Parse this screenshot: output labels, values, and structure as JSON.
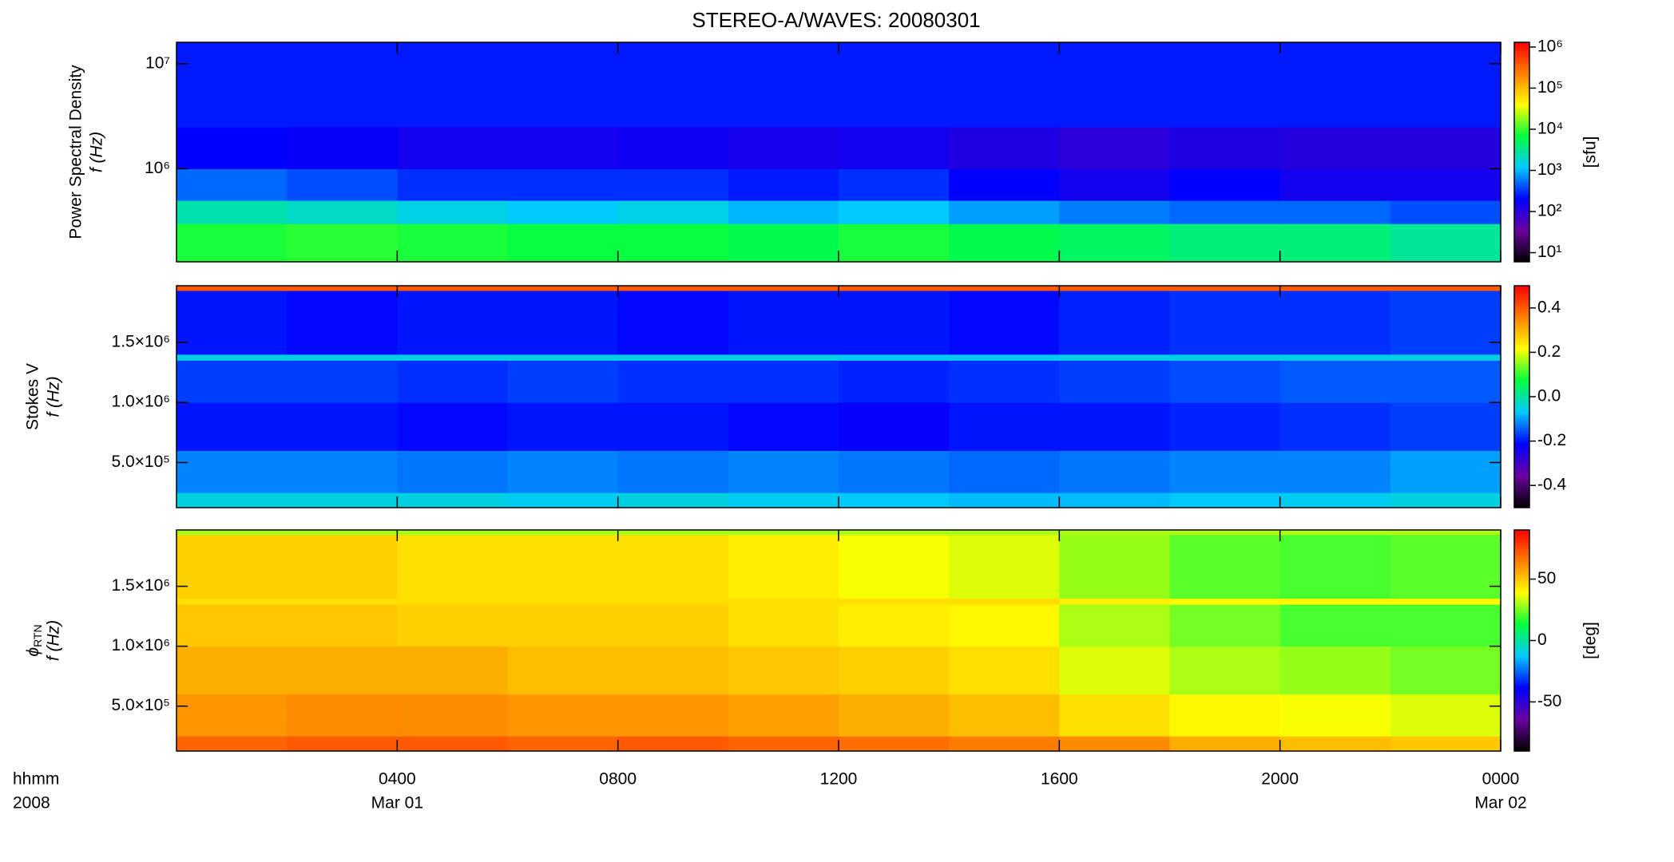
{
  "chart_data": [
    {
      "type": "heatmap",
      "title": "STEREO-A/WAVES: 20080301",
      "y_label": [
        "Power Spectral Density",
        "f (Hz)"
      ],
      "colorbar_label": "[sfu]",
      "log": true,
      "ylim": [
        130000,
        16000000
      ],
      "yticks": [
        {
          "value": 1000000,
          "label": "10⁶"
        },
        {
          "value": 10000000,
          "label": "10⁷"
        }
      ],
      "xlim": [
        0,
        24
      ],
      "xbins": [
        0,
        2,
        4,
        6,
        8,
        10,
        12,
        14,
        16,
        18,
        20,
        22,
        24
      ],
      "ybins": [
        130000,
        300000,
        500000,
        1000000,
        2500000,
        16000000
      ],
      "values": [
        [
          8000,
          9000,
          8000,
          7000,
          7000,
          6000,
          8000,
          6000,
          5000,
          4000,
          4000,
          3000
        ],
        [
          2500,
          2000,
          1500,
          1200,
          1500,
          1000,
          1200,
          800,
          600,
          500,
          500,
          400
        ],
        [
          500,
          400,
          300,
          300,
          300,
          250,
          300,
          200,
          150,
          200,
          150,
          150
        ],
        [
          200,
          180,
          150,
          150,
          160,
          140,
          150,
          120,
          100,
          120,
          110,
          110
        ],
        [
          250,
          250,
          250,
          250,
          250,
          250,
          250,
          250,
          250,
          250,
          250,
          250
        ]
      ],
      "clog": true,
      "clim": [
        6,
        1300000
      ],
      "cticks": [
        {
          "value": 10,
          "label": "10¹"
        },
        {
          "value": 100,
          "label": "10²"
        },
        {
          "value": 1000,
          "label": "10³"
        },
        {
          "value": 10000,
          "label": "10⁴"
        },
        {
          "value": 100000,
          "label": "10⁵"
        },
        {
          "value": 1000000,
          "label": "10⁶"
        }
      ],
      "colormap": [
        "#000000",
        "#6a00a0",
        "#0000ff",
        "#00c8ff",
        "#00ff40",
        "#ffff00",
        "#ff8000",
        "#ff0000"
      ]
    },
    {
      "type": "heatmap",
      "y_label": [
        "Stokes V",
        "f (Hz)"
      ],
      "ylim": [
        125000,
        1970000
      ],
      "yticks": [
        {
          "value": 500000,
          "label": "5.0×10⁵"
        },
        {
          "value": 1000000,
          "label": "1.0×10⁶"
        },
        {
          "value": 1500000,
          "label": "1.5×10⁶"
        }
      ],
      "xlim": [
        0,
        24
      ],
      "xbins": [
        0,
        2,
        4,
        6,
        8,
        10,
        12,
        14,
        16,
        18,
        20,
        22,
        24
      ],
      "ybins": [
        125000,
        250000,
        600000,
        1000000,
        1350000,
        1400000,
        1930000,
        1970000
      ],
      "values": [
        [
          -0.05,
          -0.05,
          -0.05,
          -0.06,
          -0.05,
          -0.06,
          -0.07,
          -0.08,
          -0.08,
          -0.07,
          -0.06,
          -0.05
        ],
        [
          -0.12,
          -0.12,
          -0.13,
          -0.12,
          -0.13,
          -0.12,
          -0.13,
          -0.14,
          -0.13,
          -0.12,
          -0.12,
          -0.1
        ],
        [
          -0.2,
          -0.2,
          -0.21,
          -0.2,
          -0.2,
          -0.21,
          -0.22,
          -0.2,
          -0.2,
          -0.19,
          -0.18,
          -0.17
        ],
        [
          -0.17,
          -0.17,
          -0.18,
          -0.17,
          -0.18,
          -0.18,
          -0.19,
          -0.18,
          -0.17,
          -0.16,
          -0.15,
          -0.15
        ],
        [
          -0.05,
          -0.05,
          -0.05,
          -0.05,
          -0.05,
          -0.05,
          -0.06,
          -0.06,
          -0.05,
          -0.05,
          -0.05,
          -0.05
        ],
        [
          -0.2,
          -0.21,
          -0.2,
          -0.2,
          -0.21,
          -0.2,
          -0.2,
          -0.21,
          -0.19,
          -0.18,
          -0.18,
          -0.17
        ],
        [
          0.4,
          0.4,
          0.4,
          0.4,
          0.4,
          0.4,
          0.4,
          0.4,
          0.4,
          0.4,
          0.4,
          0.4
        ]
      ],
      "clim": [
        -0.5,
        0.5
      ],
      "cticks": [
        -0.4,
        -0.2,
        {
          "value": 0,
          "label": "0.0"
        },
        0.2,
        0.4
      ],
      "colormap": [
        "#000000",
        "#6a00a0",
        "#0000ff",
        "#00c8ff",
        "#00ff40",
        "#ffff00",
        "#ff8000",
        "#ff0000"
      ]
    },
    {
      "type": "heatmap",
      "y_label_symbol": "ϕ",
      "y_label_subscript": "RTN",
      "y_label_unit": "f (Hz)",
      "colorbar_label": "[deg]",
      "ylim": [
        125000,
        1970000
      ],
      "yticks": [
        {
          "value": 500000,
          "label": "5.0×10⁵"
        },
        {
          "value": 1000000,
          "label": "1.0×10⁶"
        },
        {
          "value": 1500000,
          "label": "1.5×10⁶"
        }
      ],
      "xlim": [
        0,
        24
      ],
      "xbins": [
        0,
        2,
        4,
        6,
        8,
        10,
        12,
        14,
        16,
        18,
        20,
        22,
        24
      ],
      "ybins": [
        125000,
        250000,
        600000,
        1000000,
        1350000,
        1400000,
        1930000,
        1970000
      ],
      "values": [
        [
          70,
          72,
          72,
          70,
          72,
          70,
          68,
          65,
          62,
          55,
          52,
          50
        ],
        [
          60,
          62,
          62,
          60,
          60,
          58,
          55,
          52,
          45,
          40,
          38,
          35
        ],
        [
          55,
          55,
          55,
          52,
          52,
          50,
          48,
          45,
          35,
          30,
          28,
          25
        ],
        [
          50,
          50,
          48,
          48,
          48,
          45,
          42,
          40,
          30,
          25,
          20,
          20
        ],
        [
          45,
          45,
          45,
          45,
          45,
          45,
          45,
          45,
          42,
          40,
          40,
          40
        ],
        [
          48,
          48,
          45,
          45,
          45,
          42,
          38,
          35,
          28,
          22,
          20,
          22
        ],
        [
          30,
          30,
          30,
          30,
          30,
          30,
          30,
          30,
          30,
          30,
          30,
          30
        ]
      ],
      "clim": [
        -90,
        90
      ],
      "cticks": [
        -50,
        0,
        50
      ],
      "colormap": [
        "#000000",
        "#6a00a0",
        "#0000ff",
        "#00c8ff",
        "#00ff40",
        "#ffff00",
        "#ff8000",
        "#ff0000"
      ],
      "x_label": [
        "hhmm",
        "2008"
      ],
      "xticks": [
        {
          "value": 4,
          "label": "0400"
        },
        {
          "value": 8,
          "label": "0800"
        },
        {
          "value": 12,
          "label": "1200"
        },
        {
          "value": 16,
          "label": "1600"
        },
        {
          "value": 20,
          "label": "2000"
        },
        {
          "value": 24,
          "label": "0000"
        }
      ],
      "xtick_dates": [
        {
          "value": 4,
          "label": "Mar 01"
        },
        {
          "value": 24,
          "label": "Mar 02"
        }
      ]
    }
  ]
}
